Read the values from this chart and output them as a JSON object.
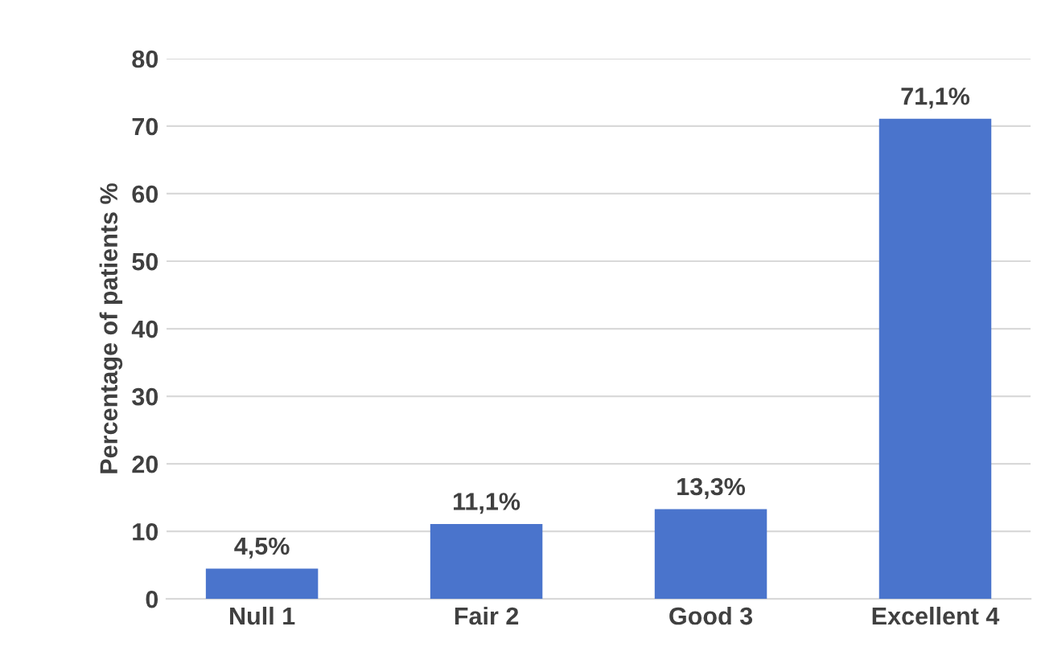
{
  "chart_data": {
    "type": "bar",
    "ylabel": "Percentage of patients %",
    "categories": [
      "Null 1",
      "Fair 2",
      "Good 3",
      "Excellent 4"
    ],
    "values": [
      4.5,
      11.1,
      13.3,
      71.1
    ],
    "value_labels": [
      "4,5%",
      "11,1%",
      "13,3%",
      "71,1%"
    ],
    "color": "#4a74cc",
    "ylim": [
      0,
      80
    ],
    "yticks": [
      0,
      10,
      20,
      30,
      40,
      50,
      60,
      70,
      80
    ],
    "grid": "y",
    "legend": false
  }
}
